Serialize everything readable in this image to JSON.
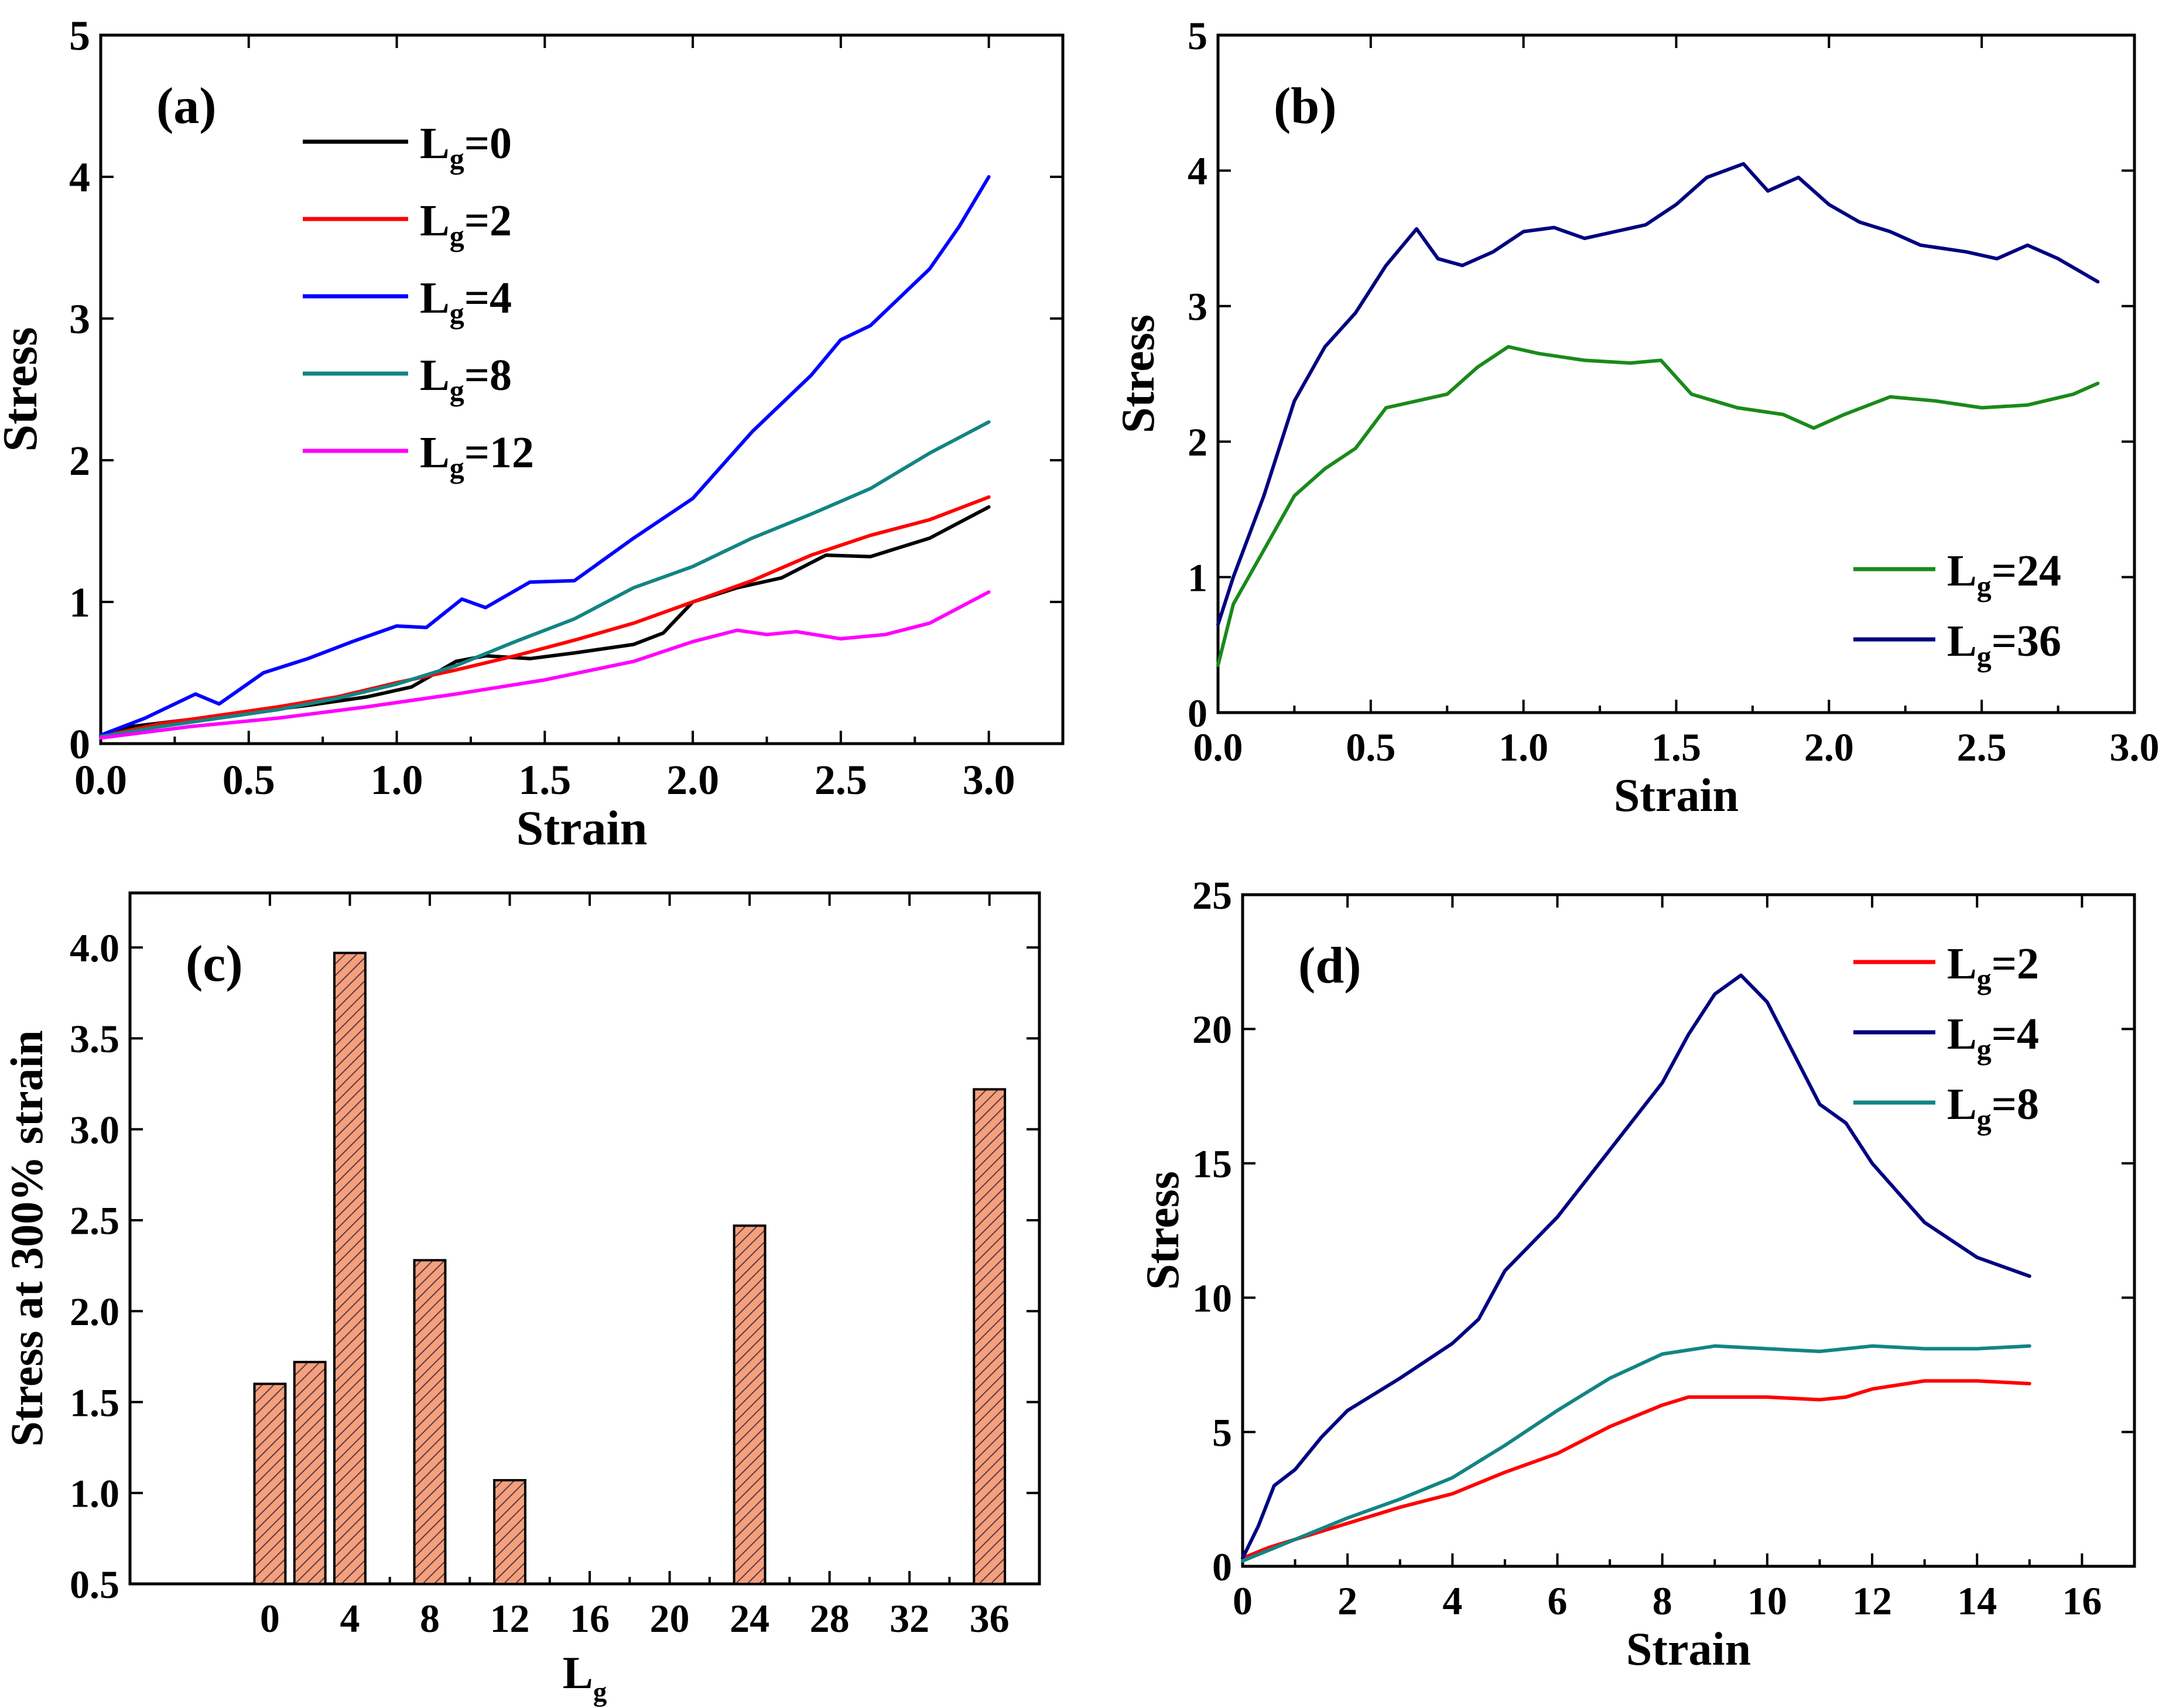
{
  "chart_data": [
    {
      "panel_label": "(a)",
      "type": "line",
      "xlabel": "Strain",
      "ylabel": "Stress",
      "xlim": [
        0,
        3.25
      ],
      "ylim": [
        0,
        5
      ],
      "xticks": [
        "0.0",
        "0.5",
        "1.0",
        "1.5",
        "2.0",
        "2.5",
        "3.0"
      ],
      "yticks": [
        "0",
        "1",
        "2",
        "3",
        "4",
        "5"
      ],
      "legend_position": "top-left",
      "series": [
        {
          "name_main": "L",
          "name_sub": "g",
          "name_rest": "=0",
          "color": "#000000",
          "x": [
            0,
            0.1,
            0.3,
            0.5,
            0.7,
            0.9,
            1.05,
            1.2,
            1.3,
            1.45,
            1.6,
            1.8,
            1.9,
            2.0,
            2.15,
            2.3,
            2.45,
            2.6,
            2.8,
            3.0
          ],
          "y": [
            0.05,
            0.12,
            0.17,
            0.22,
            0.27,
            0.33,
            0.4,
            0.58,
            0.62,
            0.6,
            0.64,
            0.7,
            0.78,
            1.0,
            1.1,
            1.17,
            1.33,
            1.32,
            1.45,
            1.67
          ]
        },
        {
          "name_main": "L",
          "name_sub": "g",
          "name_rest": "=2",
          "color": "#ff0000",
          "x": [
            0,
            0.2,
            0.4,
            0.6,
            0.8,
            1.0,
            1.2,
            1.4,
            1.6,
            1.8,
            2.0,
            2.2,
            2.4,
            2.6,
            2.8,
            3.0
          ],
          "y": [
            0.05,
            0.14,
            0.2,
            0.26,
            0.33,
            0.43,
            0.52,
            0.62,
            0.73,
            0.85,
            1.0,
            1.15,
            1.33,
            1.47,
            1.58,
            1.74
          ]
        },
        {
          "name_main": "L",
          "name_sub": "g",
          "name_rest": "=4",
          "color": "#0000ff",
          "x": [
            0,
            0.15,
            0.32,
            0.4,
            0.55,
            0.7,
            0.85,
            1.0,
            1.1,
            1.22,
            1.3,
            1.45,
            1.6,
            1.8,
            2.0,
            2.2,
            2.4,
            2.5,
            2.6,
            2.8,
            2.9,
            3.0
          ],
          "y": [
            0.06,
            0.18,
            0.35,
            0.28,
            0.5,
            0.6,
            0.72,
            0.83,
            0.82,
            1.02,
            0.96,
            1.14,
            1.15,
            1.45,
            1.73,
            2.2,
            2.6,
            2.85,
            2.95,
            3.35,
            3.65,
            4.0
          ]
        },
        {
          "name_main": "L",
          "name_sub": "g",
          "name_rest": "=8",
          "color": "#138484",
          "x": [
            0,
            0.2,
            0.4,
            0.6,
            0.8,
            1.0,
            1.2,
            1.4,
            1.6,
            1.8,
            2.0,
            2.2,
            2.4,
            2.6,
            2.8,
            3.0
          ],
          "y": [
            0.05,
            0.12,
            0.18,
            0.24,
            0.32,
            0.42,
            0.55,
            0.72,
            0.88,
            1.1,
            1.25,
            1.45,
            1.62,
            1.8,
            2.05,
            2.27
          ]
        },
        {
          "name_main": "L",
          "name_sub": "g",
          "name_rest": "=12",
          "color": "#ff00ff",
          "x": [
            0,
            0.3,
            0.6,
            0.9,
            1.2,
            1.5,
            1.8,
            2.0,
            2.15,
            2.25,
            2.35,
            2.5,
            2.65,
            2.8,
            3.0
          ],
          "y": [
            0.04,
            0.12,
            0.18,
            0.26,
            0.35,
            0.45,
            0.58,
            0.72,
            0.8,
            0.77,
            0.79,
            0.74,
            0.77,
            0.85,
            1.07
          ]
        }
      ]
    },
    {
      "panel_label": "(b)",
      "type": "line",
      "xlabel": "Strain",
      "ylabel": "Stress",
      "xlim": [
        0,
        3.0
      ],
      "ylim": [
        0,
        5
      ],
      "xticks": [
        "0.0",
        "0.5",
        "1.0",
        "1.5",
        "2.0",
        "2.5",
        "3.0"
      ],
      "yticks": [
        "0",
        "1",
        "2",
        "3",
        "4",
        "5"
      ],
      "legend_position": "bottom-right",
      "series": [
        {
          "name_main": "L",
          "name_sub": "g",
          "name_rest": "=24",
          "color": "#1a8a1a",
          "x": [
            0,
            0.05,
            0.15,
            0.25,
            0.35,
            0.45,
            0.55,
            0.65,
            0.75,
            0.85,
            0.95,
            1.05,
            1.2,
            1.35,
            1.45,
            1.55,
            1.7,
            1.85,
            1.95,
            2.05,
            2.2,
            2.35,
            2.5,
            2.65,
            2.8,
            2.88
          ],
          "y": [
            0.35,
            0.8,
            1.2,
            1.6,
            1.8,
            1.95,
            2.25,
            2.3,
            2.35,
            2.55,
            2.7,
            2.65,
            2.6,
            2.58,
            2.6,
            2.35,
            2.25,
            2.2,
            2.1,
            2.2,
            2.33,
            2.3,
            2.25,
            2.27,
            2.35,
            2.43
          ]
        },
        {
          "name_main": "L",
          "name_sub": "g",
          "name_rest": "=36",
          "color": "#000080",
          "x": [
            0,
            0.05,
            0.15,
            0.25,
            0.35,
            0.45,
            0.55,
            0.65,
            0.72,
            0.8,
            0.9,
            1.0,
            1.1,
            1.2,
            1.3,
            1.4,
            1.5,
            1.6,
            1.72,
            1.8,
            1.9,
            2.0,
            2.1,
            2.2,
            2.3,
            2.45,
            2.55,
            2.65,
            2.75,
            2.88
          ],
          "y": [
            0.65,
            1.0,
            1.6,
            2.3,
            2.7,
            2.95,
            3.3,
            3.57,
            3.35,
            3.3,
            3.4,
            3.55,
            3.58,
            3.5,
            3.55,
            3.6,
            3.75,
            3.95,
            4.05,
            3.85,
            3.95,
            3.75,
            3.62,
            3.55,
            3.45,
            3.4,
            3.35,
            3.45,
            3.35,
            3.18
          ]
        }
      ]
    },
    {
      "panel_label": "(c)",
      "type": "bar",
      "xlabel_main": "L",
      "xlabel_sub": "g",
      "ylabel": "Stress at 300% strain",
      "xlim": [
        -7,
        38.5
      ],
      "ylim": [
        0.5,
        4.3
      ],
      "xticks": [
        "0",
        "4",
        "8",
        "12",
        "16",
        "20",
        "24",
        "28",
        "32",
        "36"
      ],
      "yticks": [
        "0.5",
        "1.0",
        "1.5",
        "2.0",
        "2.5",
        "3.0",
        "3.5",
        "4.0"
      ],
      "categories": [
        0,
        2,
        4,
        8,
        12,
        24,
        36
      ],
      "values": [
        1.6,
        1.72,
        3.97,
        2.28,
        1.07,
        2.47,
        3.22
      ],
      "bar_color": "#f4a07c"
    },
    {
      "panel_label": "(d)",
      "type": "line",
      "xlabel": "Strain",
      "ylabel": "Stress",
      "xlim": [
        0,
        17
      ],
      "ylim": [
        0,
        25
      ],
      "xticks": [
        "0",
        "2",
        "4",
        "6",
        "8",
        "10",
        "12",
        "14",
        "16"
      ],
      "yticks": [
        "0",
        "5",
        "10",
        "15",
        "20",
        "25"
      ],
      "legend_position": "top-right",
      "series": [
        {
          "name_main": "L",
          "name_sub": "g",
          "name_rest": "=2",
          "color": "#ff0000",
          "x": [
            0,
            0.5,
            1,
            2,
            3,
            4,
            5,
            6,
            7,
            8,
            8.5,
            10,
            11,
            11.5,
            12,
            13,
            14,
            15
          ],
          "y": [
            0.3,
            0.7,
            1.0,
            1.6,
            2.2,
            2.7,
            3.5,
            4.2,
            5.2,
            6.0,
            6.3,
            6.3,
            6.2,
            6.3,
            6.6,
            6.9,
            6.9,
            6.8
          ]
        },
        {
          "name_main": "L",
          "name_sub": "g",
          "name_rest": "=4",
          "color": "#000080",
          "x": [
            0,
            0.3,
            0.6,
            1,
            1.5,
            2,
            3,
            4,
            4.5,
            5,
            6,
            7,
            8,
            8.5,
            9,
            9.5,
            10,
            11,
            11.5,
            12,
            13,
            14,
            15
          ],
          "y": [
            0.3,
            1.5,
            3.0,
            3.6,
            4.8,
            5.8,
            7.0,
            8.3,
            9.2,
            11.0,
            13.0,
            15.5,
            18.0,
            19.8,
            21.3,
            22.0,
            21.0,
            17.2,
            16.5,
            15.0,
            12.8,
            11.5,
            10.8
          ]
        },
        {
          "name_main": "L",
          "name_sub": "g",
          "name_rest": "=8",
          "color": "#138484",
          "x": [
            0,
            0.5,
            1,
            2,
            3,
            4,
            5,
            6,
            7,
            8,
            9,
            10,
            11,
            12,
            13,
            14,
            15
          ],
          "y": [
            0.2,
            0.6,
            1.0,
            1.8,
            2.5,
            3.3,
            4.5,
            5.8,
            7.0,
            7.9,
            8.2,
            8.1,
            8.0,
            8.2,
            8.1,
            8.1,
            8.2
          ]
        }
      ]
    }
  ]
}
